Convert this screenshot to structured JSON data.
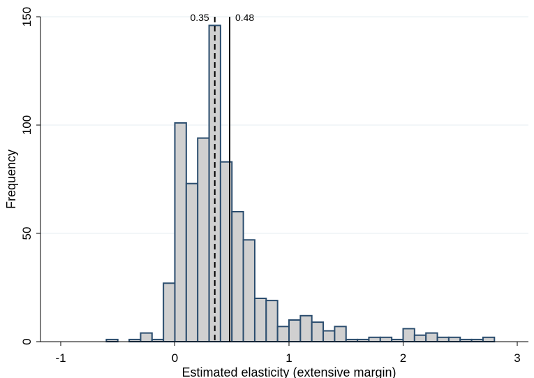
{
  "chart_data": {
    "type": "bar",
    "subtype": "histogram",
    "xlabel": "Estimated elasticity (extensive margin)",
    "ylabel": "Frequency",
    "xlim": [
      -1,
      3
    ],
    "ylim": [
      0,
      150
    ],
    "x_ticks": [
      "-1",
      "0",
      "1",
      "2",
      "3"
    ],
    "x_tick_values": [
      -1,
      0,
      1,
      2,
      3
    ],
    "y_ticks": [
      "0",
      "50",
      "100",
      "150"
    ],
    "y_tick_values": [
      0,
      50,
      100,
      150
    ],
    "grid": "horizontal",
    "bin_width": 0.1,
    "bins": [
      {
        "x": -0.6,
        "count": 1
      },
      {
        "x": -0.4,
        "count": 1
      },
      {
        "x": -0.3,
        "count": 4
      },
      {
        "x": -0.2,
        "count": 1
      },
      {
        "x": -0.1,
        "count": 27
      },
      {
        "x": 0.0,
        "count": 101
      },
      {
        "x": 0.1,
        "count": 73
      },
      {
        "x": 0.2,
        "count": 94
      },
      {
        "x": 0.3,
        "count": 146
      },
      {
        "x": 0.4,
        "count": 83
      },
      {
        "x": 0.5,
        "count": 60
      },
      {
        "x": 0.6,
        "count": 47
      },
      {
        "x": 0.7,
        "count": 20
      },
      {
        "x": 0.8,
        "count": 19
      },
      {
        "x": 0.9,
        "count": 7
      },
      {
        "x": 1.0,
        "count": 10
      },
      {
        "x": 1.1,
        "count": 12
      },
      {
        "x": 1.2,
        "count": 9
      },
      {
        "x": 1.3,
        "count": 5
      },
      {
        "x": 1.4,
        "count": 7
      },
      {
        "x": 1.5,
        "count": 1
      },
      {
        "x": 1.6,
        "count": 1
      },
      {
        "x": 1.7,
        "count": 2
      },
      {
        "x": 1.8,
        "count": 2
      },
      {
        "x": 1.9,
        "count": 1
      },
      {
        "x": 2.0,
        "count": 6
      },
      {
        "x": 2.1,
        "count": 3
      },
      {
        "x": 2.2,
        "count": 4
      },
      {
        "x": 2.3,
        "count": 2
      },
      {
        "x": 2.4,
        "count": 2
      },
      {
        "x": 2.5,
        "count": 1
      },
      {
        "x": 2.6,
        "count": 1
      },
      {
        "x": 2.7,
        "count": 2
      }
    ],
    "reference_lines": [
      {
        "value": 0.35,
        "label": "0.35",
        "style": "dashed"
      },
      {
        "value": 0.48,
        "label": "0.48",
        "style": "solid"
      }
    ],
    "colors": {
      "bar_fill": "#d0d0d0",
      "bar_edge": "#2b4d6e",
      "grid": "#e6ecf1",
      "axis": "#000000"
    }
  }
}
